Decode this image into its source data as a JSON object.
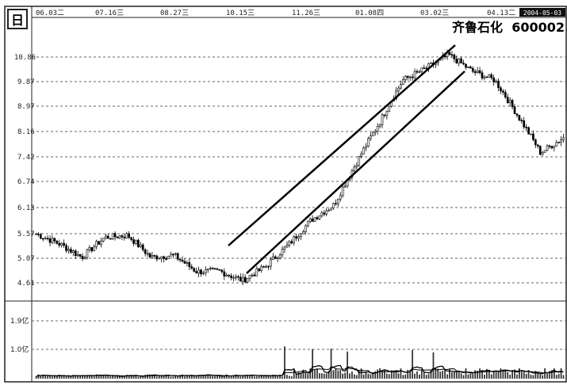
{
  "period_badge": "日",
  "stock_title": "齐鲁石化  600002",
  "date_ticks": [
    "06.03二",
    "07.16三",
    "08.27三",
    "10.15三",
    "11.26三",
    "01.08四",
    "03.02三",
    "04.13二"
  ],
  "date_readout": "2004-05-03",
  "price_ticks": [
    "10.86",
    "9.87",
    "8.97",
    "8.16",
    "7.42",
    "6.74",
    "6.13",
    "5.57",
    "5.07",
    "4.61"
  ],
  "volume_ticks": [
    "1.9亿",
    "1.0亿"
  ],
  "chart_data": {
    "type": "candlestick",
    "price_axis": {
      "scale": "log",
      "ticks": [
        10.86,
        9.87,
        8.97,
        8.16,
        7.42,
        6.74,
        6.13,
        5.57,
        5.07,
        4.61
      ]
    },
    "volume_axis": {
      "unit": "亿",
      "ticks": [
        1.9,
        1.0
      ]
    },
    "grid": true,
    "trend_channel": {
      "start_date": "10.15",
      "end_date": "03.02",
      "direction": "up"
    },
    "close_price_path": [
      {
        "date": "06.03",
        "price": 5.55
      },
      {
        "date": "06.20",
        "price": 5.35
      },
      {
        "date": "07.01",
        "price": 5.08
      },
      {
        "date": "07.16",
        "price": 5.48
      },
      {
        "date": "07.25",
        "price": 5.52
      },
      {
        "date": "08.05",
        "price": 5.08
      },
      {
        "date": "08.15",
        "price": 5.12
      },
      {
        "date": "08.27",
        "price": 4.81
      },
      {
        "date": "09.20",
        "price": 4.82
      },
      {
        "date": "10.01",
        "price": 4.65
      },
      {
        "date": "10.15",
        "price": 4.9
      },
      {
        "date": "11.01",
        "price": 5.32
      },
      {
        "date": "11.26",
        "price": 5.85
      },
      {
        "date": "12.15",
        "price": 6.2
      },
      {
        "date": "01.08",
        "price": 7.3
      },
      {
        "date": "02.01",
        "price": 8.5
      },
      {
        "date": "02.20",
        "price": 9.95
      },
      {
        "date": "03.02",
        "price": 10.4
      },
      {
        "date": "03.15",
        "price": 10.95
      },
      {
        "date": "03.25",
        "price": 10.3
      },
      {
        "date": "04.13",
        "price": 9.95
      },
      {
        "date": "04.25",
        "price": 8.7
      },
      {
        "date": "05.01",
        "price": 7.55
      },
      {
        "date": "05.03",
        "price": 8.0
      }
    ]
  }
}
